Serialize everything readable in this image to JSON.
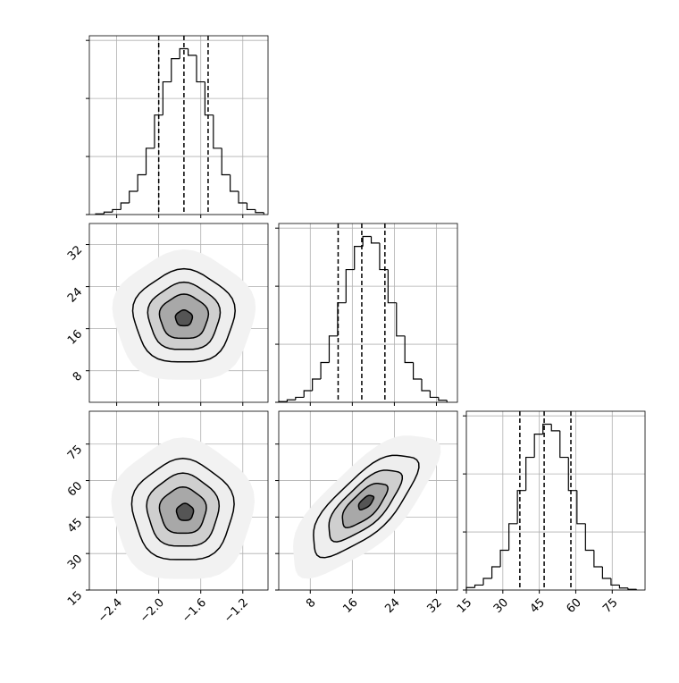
{
  "chart_data": {
    "type": "corner",
    "parameters": [
      {
        "lim": [
          -2.66,
          -0.96
        ],
        "ticks": [
          {
            "value": -2.4,
            "label": "−2.4"
          },
          {
            "value": -2.0,
            "label": "−2.0"
          },
          {
            "value": -1.6,
            "label": "−1.6"
          },
          {
            "value": -1.2,
            "label": "−1.2"
          }
        ],
        "bins": [
          -2.6,
          -2.52,
          -2.44,
          -2.36,
          -2.28,
          -2.2,
          -2.12,
          -2.04,
          -1.96,
          -1.88,
          -1.8,
          -1.72,
          -1.64,
          -1.56,
          -1.48,
          -1.4,
          -1.32,
          -1.24,
          -1.16,
          -1.08,
          -1.0
        ],
        "counts": [
          4,
          15,
          30,
          70,
          140,
          240,
          400,
          600,
          800,
          940,
          1000,
          960,
          800,
          600,
          400,
          240,
          140,
          70,
          30,
          12
        ],
        "quantiles": [
          -2.0,
          -1.76,
          -1.53
        ]
      },
      {
        "lim": [
          2,
          36
        ],
        "ticks": [
          8,
          16,
          24,
          32
        ],
        "bins": [
          2,
          3.6,
          5.2,
          6.8,
          8.4,
          10,
          11.6,
          13.2,
          14.8,
          16.4,
          18,
          19.6,
          21.2,
          22.8,
          24.4,
          26,
          27.6,
          29.2,
          30.8,
          32.4,
          34
        ],
        "counts": [
          4,
          15,
          30,
          70,
          140,
          240,
          400,
          600,
          800,
          940,
          1000,
          960,
          800,
          600,
          400,
          240,
          140,
          70,
          30,
          12
        ],
        "quantiles": [
          13.3,
          17.8,
          22.2
        ]
      },
      {
        "lim": [
          15,
          88.5
        ],
        "ticks": [
          15,
          30,
          45,
          60,
          75
        ],
        "bins": [
          15,
          18.5,
          22,
          25.5,
          29,
          32.5,
          36,
          39.5,
          43,
          46.5,
          50,
          53.5,
          57,
          60.5,
          64,
          67.5,
          71,
          74.5,
          78,
          81.5,
          85
        ],
        "counts": [
          15,
          30,
          70,
          140,
          240,
          400,
          600,
          800,
          940,
          1000,
          960,
          800,
          600,
          400,
          240,
          140,
          70,
          30,
          12,
          4
        ],
        "quantiles": [
          37,
          47,
          58
        ]
      }
    ],
    "count_lim": [
      0,
      1078
    ],
    "count_ticks": [
      0,
      350,
      700,
      1050
    ],
    "grid": true,
    "pairs": [
      {
        "x_param": 0,
        "y_param": 1,
        "contours": [
          {
            "center": [
              -1.76,
              18.2
            ],
            "axis1": [
              0.48,
              0
            ],
            "axis2": [
              0,
              8.85
            ]
          },
          {
            "center": [
              -1.76,
              18.2
            ],
            "axis1": [
              0.34,
              0
            ],
            "axis2": [
              0,
              6.4
            ]
          },
          {
            "center": [
              -1.76,
              18.2
            ],
            "axis1": [
              0.23,
              0
            ],
            "axis2": [
              0,
              4.2
            ]
          },
          {
            "center": [
              -1.76,
              18.0
            ],
            "axis1": [
              0.08,
              0
            ],
            "axis2": [
              0,
              1.5
            ]
          }
        ]
      },
      {
        "x_param": 0,
        "y_param": 2,
        "contours": [
          {
            "center": [
              -1.77,
              47.5
            ],
            "axis1": [
              0.48,
              0
            ],
            "axis2": [
              0,
              20.8
            ]
          },
          {
            "center": [
              -1.77,
              47.5
            ],
            "axis1": [
              0.34,
              0
            ],
            "axis2": [
              0,
              15
            ]
          },
          {
            "center": [
              -1.77,
              47.5
            ],
            "axis1": [
              0.22,
              0
            ],
            "axis2": [
              0,
              9.5
            ]
          },
          {
            "center": [
              -1.75,
              47.0
            ],
            "axis1": [
              0.08,
              0
            ],
            "axis2": [
              0,
              3.5
            ]
          }
        ]
      },
      {
        "x_param": 1,
        "y_param": 2,
        "contours": [
          {
            "center": [
              18.3,
              50
            ],
            "axis1": [
              9.35,
              19.3
            ],
            "axis2": [
              3.57,
              -8.1
            ]
          },
          {
            "center": [
              18.3,
              50
            ],
            "axis1": [
              6.5,
              13.5
            ],
            "axis2": [
              2.5,
              -5.7
            ]
          },
          {
            "center": [
              18.3,
              50
            ],
            "axis1": [
              4,
              8.3
            ],
            "axis2": [
              1.6,
              -3.6
            ]
          },
          {
            "center": [
              18.6,
              51
            ],
            "axis1": [
              1.3,
              2.6
            ],
            "axis2": [
              0.6,
              -1.3
            ]
          }
        ]
      }
    ]
  }
}
